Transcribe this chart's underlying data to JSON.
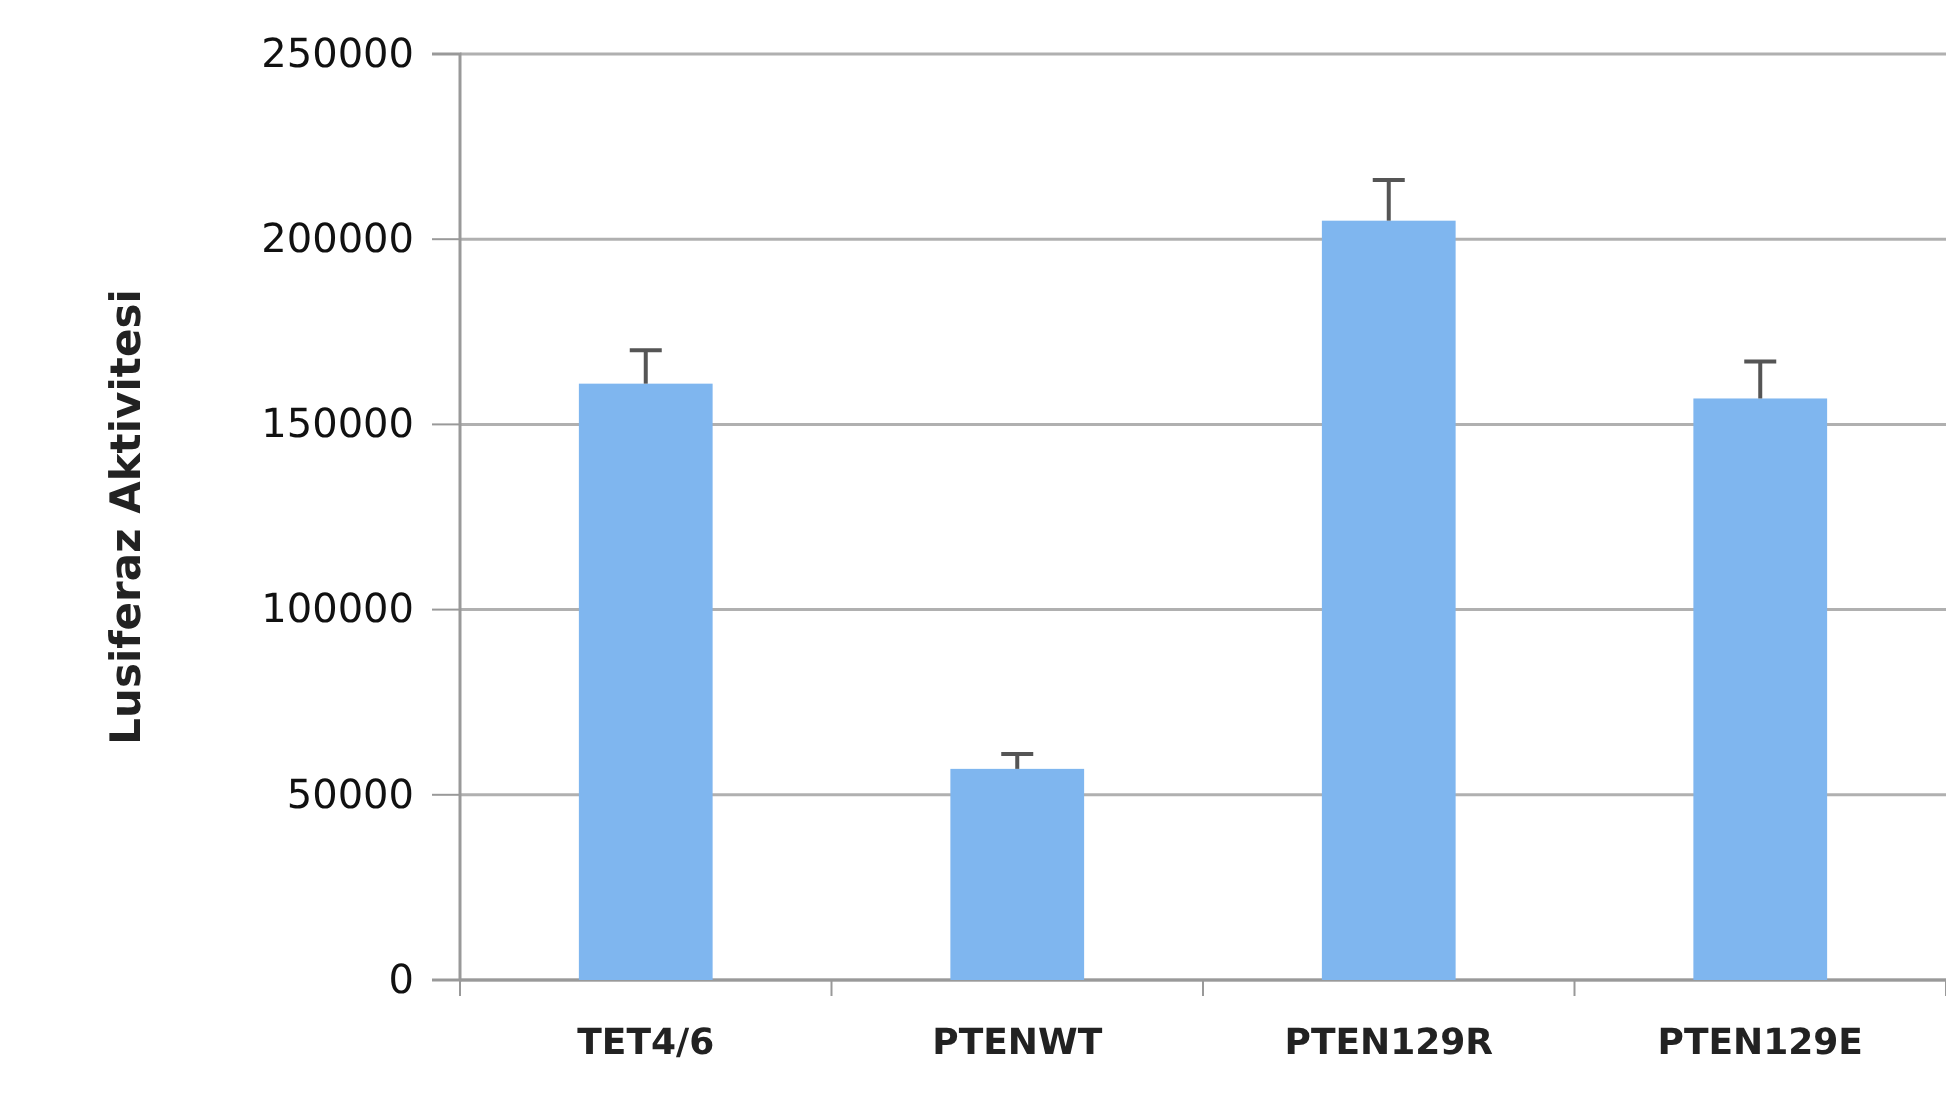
{
  "chart_data": {
    "type": "bar",
    "ylabel": "Lusiferaz Aktivitesi",
    "categories": [
      "TET4/6",
      "PTENWT",
      "PTEN129R",
      "PTEN129E"
    ],
    "values": [
      161000,
      57000,
      205000,
      157000
    ],
    "errors": [
      9000,
      4000,
      11000,
      10000
    ],
    "color": "#7fb6ef",
    "ylim": [
      0,
      250000
    ],
    "yticks": [
      0,
      50000,
      100000,
      150000,
      200000,
      250000
    ],
    "grid": "y"
  }
}
